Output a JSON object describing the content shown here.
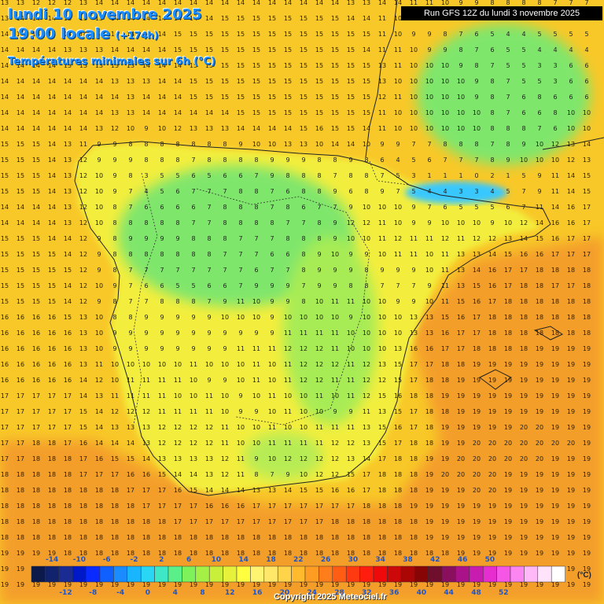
{
  "header": {
    "date": "lundi 10 novembre 2025",
    "time": "19:00 locale",
    "lead": "(+174h)",
    "parameter": "Températures minimales sur 6h (°C)"
  },
  "run_info": "Run GFS 12Z du lundi 3 novembre 2025",
  "copyright": "Copyright 2025 Meteociel.fr",
  "legend": {
    "unit": "(°C)",
    "top_labels": [
      "-14",
      "-10",
      "-6",
      "-2",
      "2",
      "6",
      "10",
      "14",
      "18",
      "22",
      "26",
      "30",
      "34",
      "38",
      "42",
      "46",
      "50"
    ],
    "bottom_labels": [
      "-12",
      "-8",
      "-4",
      "0",
      "4",
      "8",
      "12",
      "16",
      "20",
      "24",
      "28",
      "32",
      "36",
      "40",
      "44",
      "48",
      "52"
    ],
    "colors": [
      "#0b1a4a",
      "#12236e",
      "#1a2c91",
      "#0019c8",
      "#0a2bff",
      "#1060ff",
      "#1a8cff",
      "#19b6ff",
      "#2ad6f5",
      "#3ee8c6",
      "#5bef8a",
      "#7ef25a",
      "#a4f046",
      "#c8f03a",
      "#e6f23a",
      "#ffff40",
      "#fff372",
      "#ffe76a",
      "#ffd34a",
      "#ffba2e",
      "#ff9d22",
      "#ff7d1a",
      "#ff5c14",
      "#ff3a10",
      "#ff1e0e",
      "#ee0a0a",
      "#cc0808",
      "#aa0606",
      "#880505",
      "#700e2e",
      "#8a0f5e",
      "#aa128a",
      "#c81cb0",
      "#e62ed0",
      "#f556e6",
      "#fb86f2",
      "#ffb8f8",
      "#ffe3fb",
      "#ffffff"
    ]
  },
  "map_colors": {
    "sea_west": "#f8c828",
    "sea_south": "#f49e2c",
    "land": "#f3ee3c",
    "green": "#7fe66c",
    "light_green": "#b8ec54",
    "cold": "#38c8ff",
    "coast": "#222222"
  },
  "grid": [
    "13 13 12 12 12 13 14 14 14 14 14 14 14 14 14 14 14 14 14 14 14 14 13 13 14 14 11 11 10 9 9 8 8 8 8 7 7 7",
    "13 14 14 14 13 13 13 14 14 14 14 14 14 14 15 15 15 15 15 15 15 15 14 14 11 10 10 9 8 8 7 6 5 4 5 5 5 5",
    "14 14 14 14 14 14 14 14 14 14 14 15 15 15 15 15 15 15 15 15 15 15 15 15 11 10 9 9 8 7 6 5 4 4 5 5 5 5",
    "14 14 14 14 13 13 13 14 14 14 14 15 15 15 15 15 15 15 15 15 15 15 15 14 11 11 10 9 9 8 7 6 5 5 4 4 4 4",
    "14 14 14 14 13 13 13 13 13 14 14 14 15 15 15 15 15 15 15 15 15 15 15 15 13 11 10 10 10 9 8 7 5 5 3 3 6 6",
    "14 14 14 14 14 14 14 13 13 13 14 14 15 15 15 15 15 15 15 15 15 15 15 15 13 10 10 10 10 10 9 8 7 5 5 3 6 6",
    "14 14 14 14 14 14 14 14 13 14 14 14 15 15 15 15 15 15 15 15 15 15 15 15 12 11 10 10 10 10 9 8 7 6 8 6 6 6",
    "14 14 14 14 14 14 14 13 13 14 14 14 14 14 14 15 15 15 15 15 15 15 15 15 11 10 10 10 10 10 10 8 7 6 6 8 10 10",
    "14 14 14 14 14 14 13 12 10 9 10 12 13 13 13 14 14 14 14 15 16 15 15 14 11 10 10 10 10 10 10 8 8 8 7 6 10 10",
    "15 15 15 14 13 11 9 9 8 8 8 8 8 8 8 9 10 10 13 13 10 14 14 10 9 9 7 7 8 8 8 7 8 9 10 12 13 14",
    "15 15 15 14 13 12 9 9 9 8 8 8 7 8 8 8 8 9 9 9 8 8 9 8 6 4 5 6 7 7 7 8 9 10 10 10 12 13",
    "15 15 15 14 13 12 10 9 8 3 5 5 6 5 6 6 7 9 8 8 8 7 8 8 7 5 3 1 1 1 0 2 1 5 9 11 14 15",
    "15 15 15 14 13 12 10 9 7 4 5 6 7 7 7 8 8 7 6 8 8 9 6 8 9 7 5 4 4 3 3 4 5 7 9 11 14 15",
    "14 14 14 14 13 12 10 8 7 6 6 6 6 7 8 8 8 7 8 6 7 7 9 10 10 10 9 7 6 5 5 5 6 7 11 14 16 17",
    "14 14 14 14 13 12 10 8 8 8 8 8 7 7 8 8 8 8 7 7 8 9 12 12 11 10 9 9 10 10 10 9 10 12 14 16 16 17",
    "15 15 15 14 14 12 9 8 9 9 9 9 8 8 8 7 7 7 8 8 8 9 10 10 11 12 11 11 12 11 12 12 13 14 15 16 17 17",
    "15 15 15 15 14 12 9 8 8 8 8 8 8 8 7 7 7 6 6 8 9 10 9 9 10 11 11 10 11 13 13 14 15 16 16 17 17 17",
    "15 15 15 15 15 12 9 8 7 7 7 7 7 7 7 7 6 7 7 8 9 9 9 8 9 9 9 10 11 13 14 16 17 17 18 18 18 18",
    "15 15 15 15 14 12 10 9 7 6 6 5 5 6 6 7 9 9 9 7 9 9 8 8 7 7 7 9 11 13 15 16 17 18 18 17 17 18",
    "15 15 15 15 14 12 9 8 7 7 8 8 8 7 9 11 10 9 9 8 10 11 11 10 10 9 9 10 11 15 16 17 18 18 18 18 18 18",
    "16 16 16 16 15 13 10 8 8 9 9 9 9 9 10 10 10 9 10 10 10 10 9 10 10 10 13 13 15 16 17 18 18 18 18 18 18 18",
    "16 16 16 16 16 13 10 9 9 9 9 9 9 9 9 9 9 9 11 11 11 11 10 10 10 10 13 13 16 17 17 18 18 18 18 18 18 18",
    "16 16 16 16 16 13 10 9 9 9 9 9 9 9 9 11 11 11 12 12 12 11 10 10 10 13 16 16 17 17 18 18 18 18 19 19 19 19",
    "16 16 16 16 16 13 11 10 10 10 10 10 11 10 10 10 11 10 11 12 12 12 11 12 13 15 17 17 18 18 19 19 19 19 19 19 19 19",
    "16 16 16 16 16 14 12 10 11 11 11 11 10 9 9 10 11 10 11 12 12 11 11 12 12 15 17 18 18 19 19 19 19 19 19 19 19 19",
    "17 17 17 17 17 14 13 11 11 11 11 10 10 11 10 9 10 11 10 10 11 10 11 12 15 16 18 18 19 19 19 19 19 19 19 19 19 19",
    "17 17 17 17 17 15 14 12 12 12 11 11 11 11 10 9 9 10 11 10 10 9 9 11 13 15 17 18 18 19 19 19 19 19 19 19 19 19",
    "17 17 17 17 17 15 14 13 13 13 12 12 12 12 11 10 10 11 10 10 11 11 11 13 15 16 17 18 19 19 19 19 19 20 20 19 19 19",
    "17 17 18 18 17 16 14 14 14 13 12 12 12 12 11 10 10 11 11 11 11 12 12 13 15 17 18 18 19 19 20 20 20 20 20 20 20 19",
    "17 17 18 18 18 17 16 15 15 14 13 13 13 13 12 11 9 10 12 12 12 12 13 14 17 18 18 19 19 20 20 20 20 20 20 19 19 19",
    "18 18 18 18 18 17 17 17 16 16 15 14 14 13 12 11 8 7 9 10 12 12 15 17 18 18 18 19 20 20 20 20 19 19 19 19 19 19",
    "18 18 18 18 18 18 18 18 17 17 17 16 15 14 14 14 13 13 14 15 15 16 16 17 18 18 18 19 19 19 20 20 19 19 19 19 19 19",
    "18 18 18 18 18 18 18 18 18 17 17 17 17 16 16 16 17 17 17 17 17 17 17 18 18 18 19 19 19 19 19 19 19 19 19 19 19 19",
    "18 18 18 18 18 18 18 18 18 18 18 17 17 17 17 17 17 17 17 17 17 18 18 18 18 18 18 19 19 19 19 19 19 19 19 19 19 19",
    "18 18 18 18 18 18 18 18 18 18 18 18 18 18 18 18 18 18 18 18 18 18 18 18 18 18 18 19 19 19 19 19 19 19 19 19 19 19",
    "19 19 19 19 18 18 18 18 18 18 18 18 18 18 18 18 18 18 18 18 18 18 18 18 18 18 18 18 18 19 19 19 19 19 19 19 19 19",
    "19 19 19 19 19 19 19 19 19 19 19 19 19 19 19 19 19 19 19 19 19 19 19 19 19 19 19 19 19 19 19 19 19 19 19 19 19 19",
    "19 19 19 19 19 19 19 19 19 19 19 19 19 19 19 19 19 19 19 19 19 19 19 19 19 19 19 19 19 19 19 19 19 19 19 19 19 19"
  ]
}
